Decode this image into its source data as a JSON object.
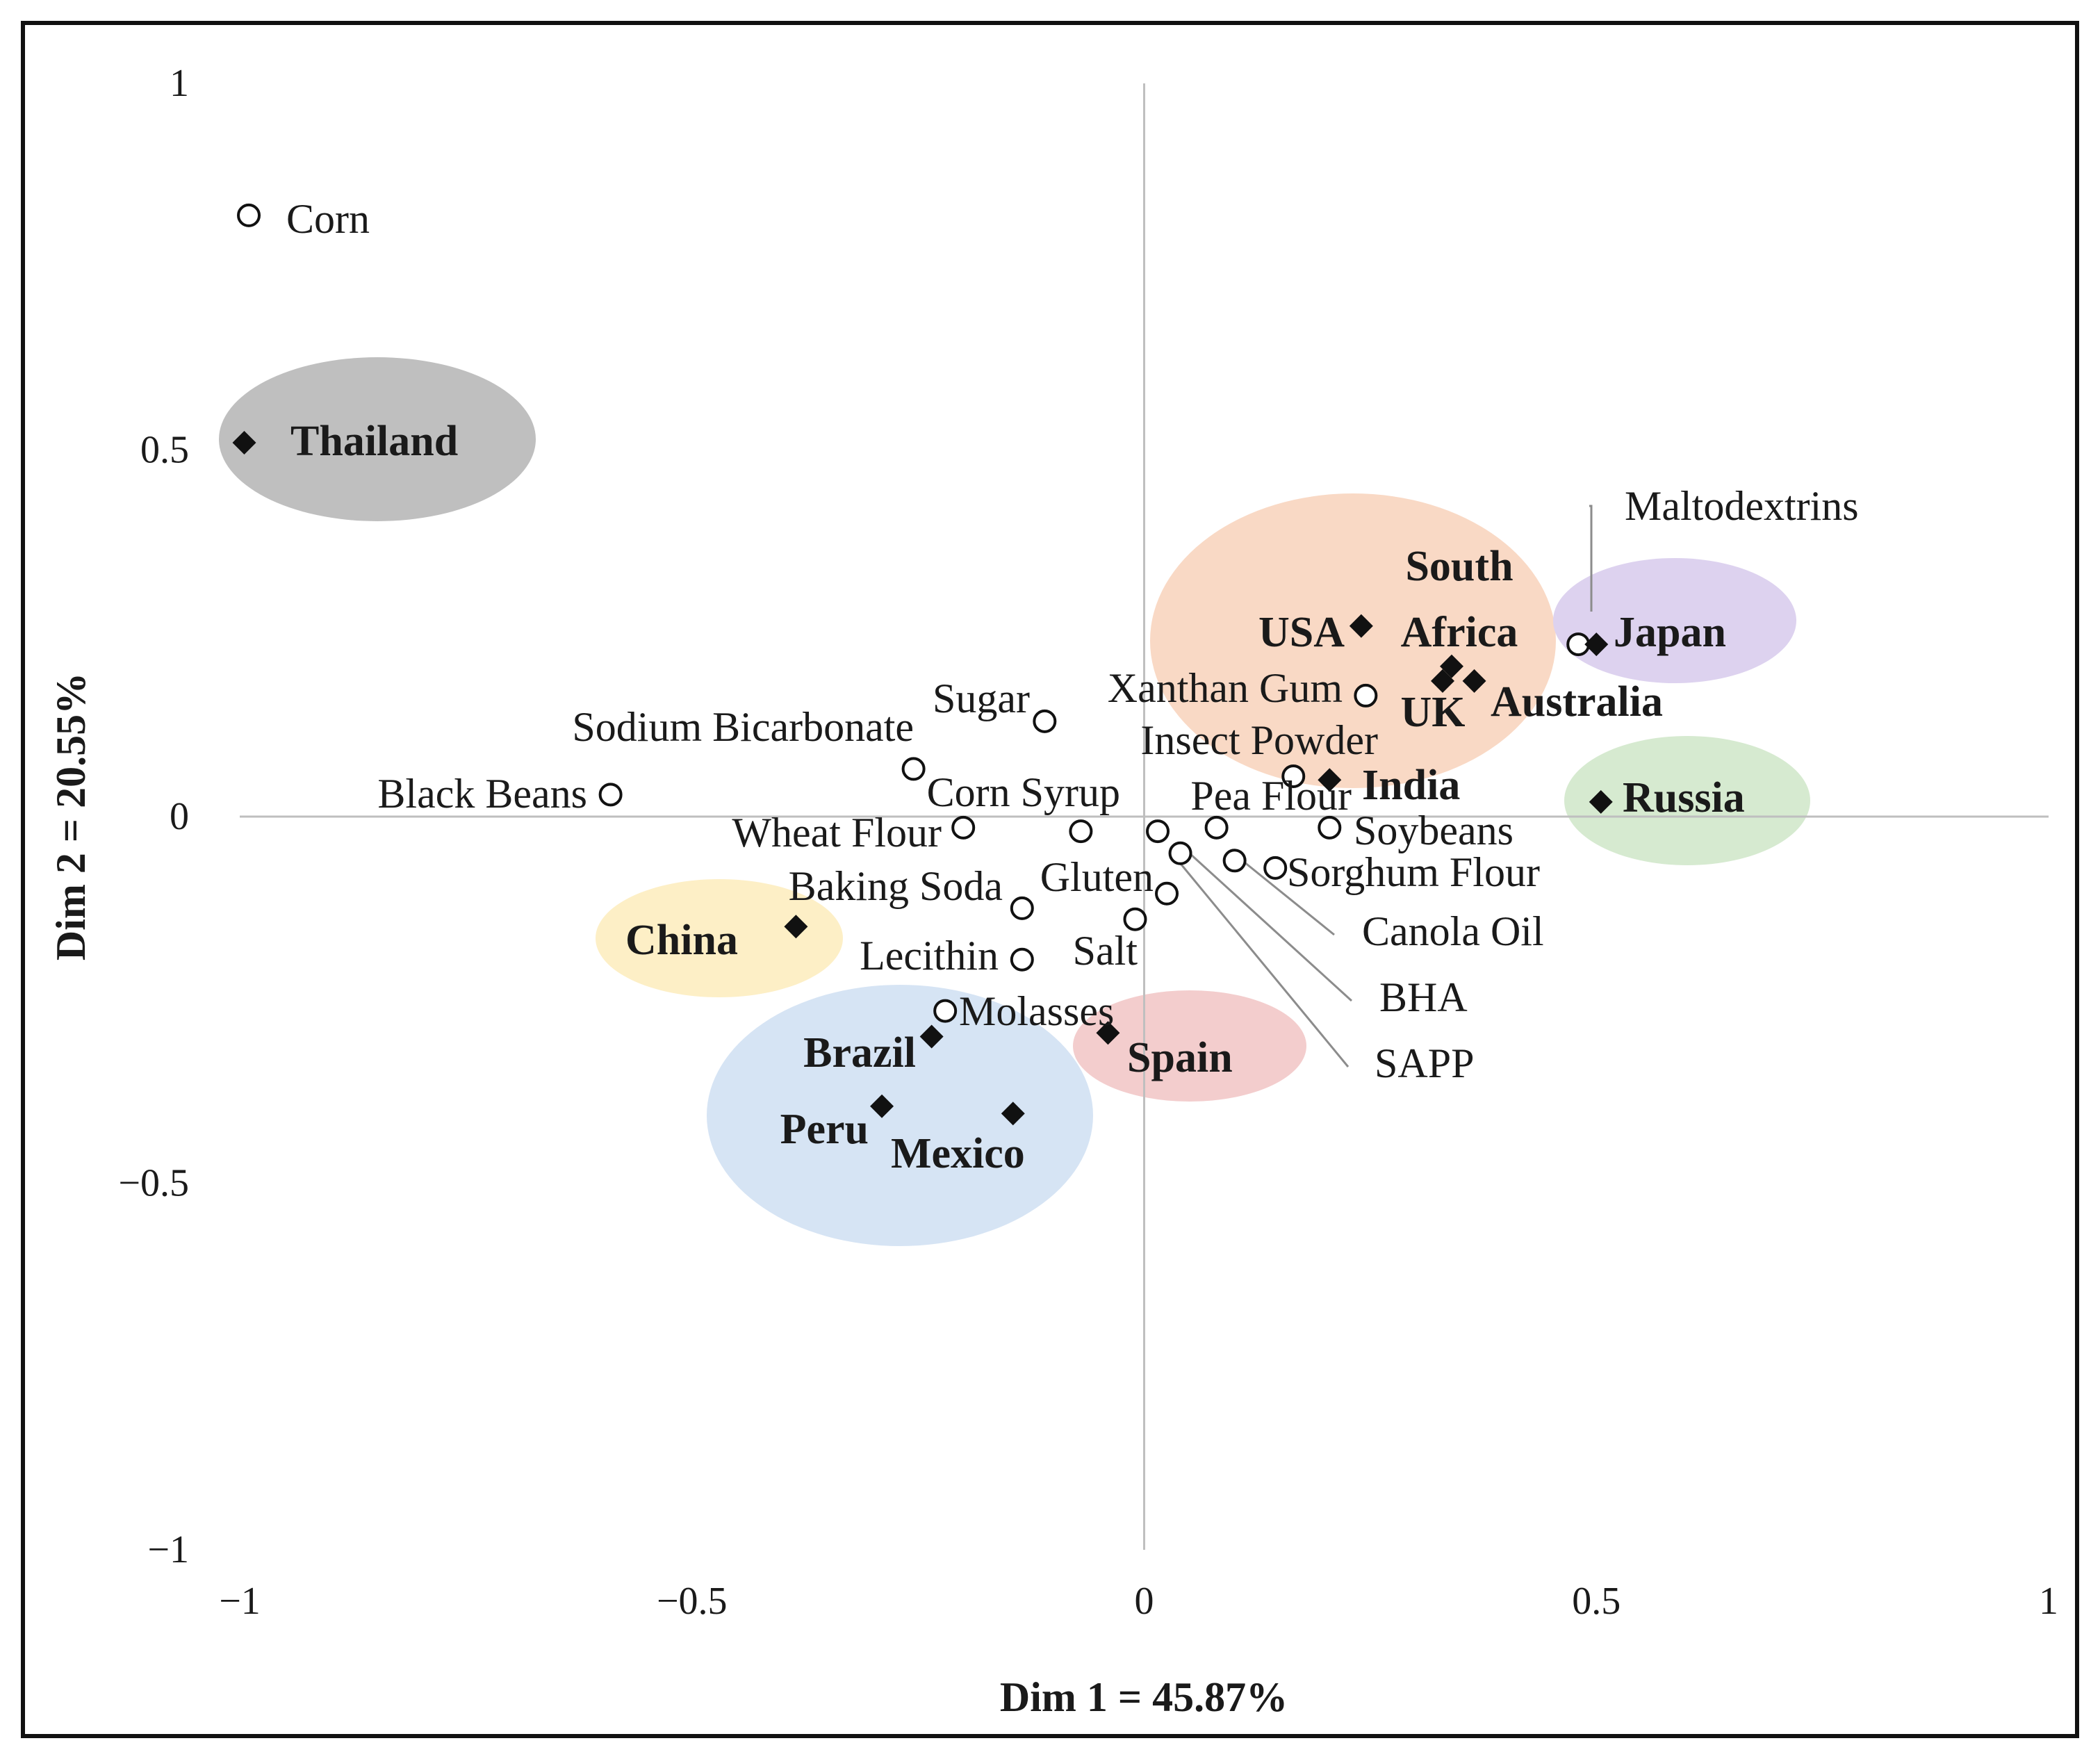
{
  "chart_data": {
    "type": "scatter",
    "title": "",
    "xlabel": "Dim 1 = 45.87%",
    "ylabel": "Dim 2 = 20.55%",
    "xlim": [
      -1,
      1
    ],
    "ylim": [
      -1,
      1
    ],
    "x_ticks": [
      "−1",
      "−0.5",
      "0",
      "0.5",
      "1"
    ],
    "y_ticks": [
      "1",
      "0.5",
      "0",
      "−0.5",
      "−1"
    ],
    "x_tick_values": [
      -1,
      -0.5,
      0,
      0.5,
      1
    ],
    "y_tick_values": [
      1,
      0.5,
      0,
      -0.5,
      -1
    ],
    "variables": [
      {
        "name": "Corn",
        "x": -0.99,
        "y": 0.82
      },
      {
        "name": "Maltodextrins",
        "x": 0.48,
        "y": 0.235
      },
      {
        "name": "Sugar",
        "x": -0.11,
        "y": 0.13
      },
      {
        "name": "Xanthan Gum",
        "x": 0.245,
        "y": 0.165
      },
      {
        "name": "Sodium Bicarbonate",
        "x": -0.255,
        "y": 0.065
      },
      {
        "name": "Insect Powder",
        "x": 0.165,
        "y": 0.055
      },
      {
        "name": "Black Beans",
        "x": -0.59,
        "y": 0.03
      },
      {
        "name": "Corn Syrup",
        "x": -0.07,
        "y": -0.02
      },
      {
        "name": "Pea Flour",
        "x": 0.08,
        "y": -0.015
      },
      {
        "name": "Wheat Flour",
        "x": -0.2,
        "y": -0.015
      },
      {
        "name": "Soybeans",
        "x": 0.205,
        "y": -0.015
      },
      {
        "name": "Sorghum Flour",
        "x": 0.145,
        "y": -0.07
      },
      {
        "name": "Baking Soda",
        "x": -0.135,
        "y": -0.125
      },
      {
        "name": "Gluten",
        "x": 0.025,
        "y": -0.105
      },
      {
        "name": "Salt",
        "x": -0.01,
        "y": -0.14
      },
      {
        "name": "Lecithin",
        "x": -0.135,
        "y": -0.195
      },
      {
        "name": "Molasses",
        "x": -0.22,
        "y": -0.265
      },
      {
        "name": "Canola Oil",
        "x": 0.1,
        "y": -0.06
      },
      {
        "name": "BHA",
        "x": 0.04,
        "y": -0.05
      },
      {
        "name": "SAPP",
        "x": 0.015,
        "y": -0.02
      }
    ],
    "countries": [
      {
        "name": "Thailand",
        "x": -0.995,
        "y": 0.51
      },
      {
        "name": "USA",
        "x": 0.24,
        "y": 0.26
      },
      {
        "name": "South Africa",
        "x": 0.34,
        "y": 0.205
      },
      {
        "name": "UK",
        "x": 0.33,
        "y": 0.185
      },
      {
        "name": "Australia",
        "x": 0.365,
        "y": 0.185
      },
      {
        "name": "Japan",
        "x": 0.5,
        "y": 0.235
      },
      {
        "name": "India",
        "x": 0.205,
        "y": 0.05
      },
      {
        "name": "Russia",
        "x": 0.505,
        "y": 0.02
      },
      {
        "name": "China",
        "x": -0.385,
        "y": -0.15
      },
      {
        "name": "Brazil",
        "x": -0.235,
        "y": -0.3
      },
      {
        "name": "Spain",
        "x": -0.04,
        "y": -0.295
      },
      {
        "name": "Peru",
        "x": -0.29,
        "y": -0.395
      },
      {
        "name": "Mexico",
        "x": -0.145,
        "y": -0.405
      }
    ],
    "groups": [
      {
        "members": [
          "Thailand"
        ],
        "color": "#bfbfbf"
      },
      {
        "members": [
          "USA",
          "South Africa",
          "UK",
          "Australia",
          "India"
        ],
        "color": "#f9d9c5"
      },
      {
        "members": [
          "Japan"
        ],
        "color": "#ddd2ef"
      },
      {
        "members": [
          "Russia"
        ],
        "color": "#d6ead0"
      },
      {
        "members": [
          "China"
        ],
        "color": "#fdefc6"
      },
      {
        "members": [
          "Brazil",
          "Peru",
          "Mexico"
        ],
        "color": "#d6e4f4"
      },
      {
        "members": [
          "Spain"
        ],
        "color": "#f3cdcd"
      }
    ],
    "grid": false,
    "colors": {
      "axis": "#bfbfbf",
      "marker": "#111111",
      "text": "#1a1a1a",
      "leader": "#8c8c8c"
    }
  }
}
